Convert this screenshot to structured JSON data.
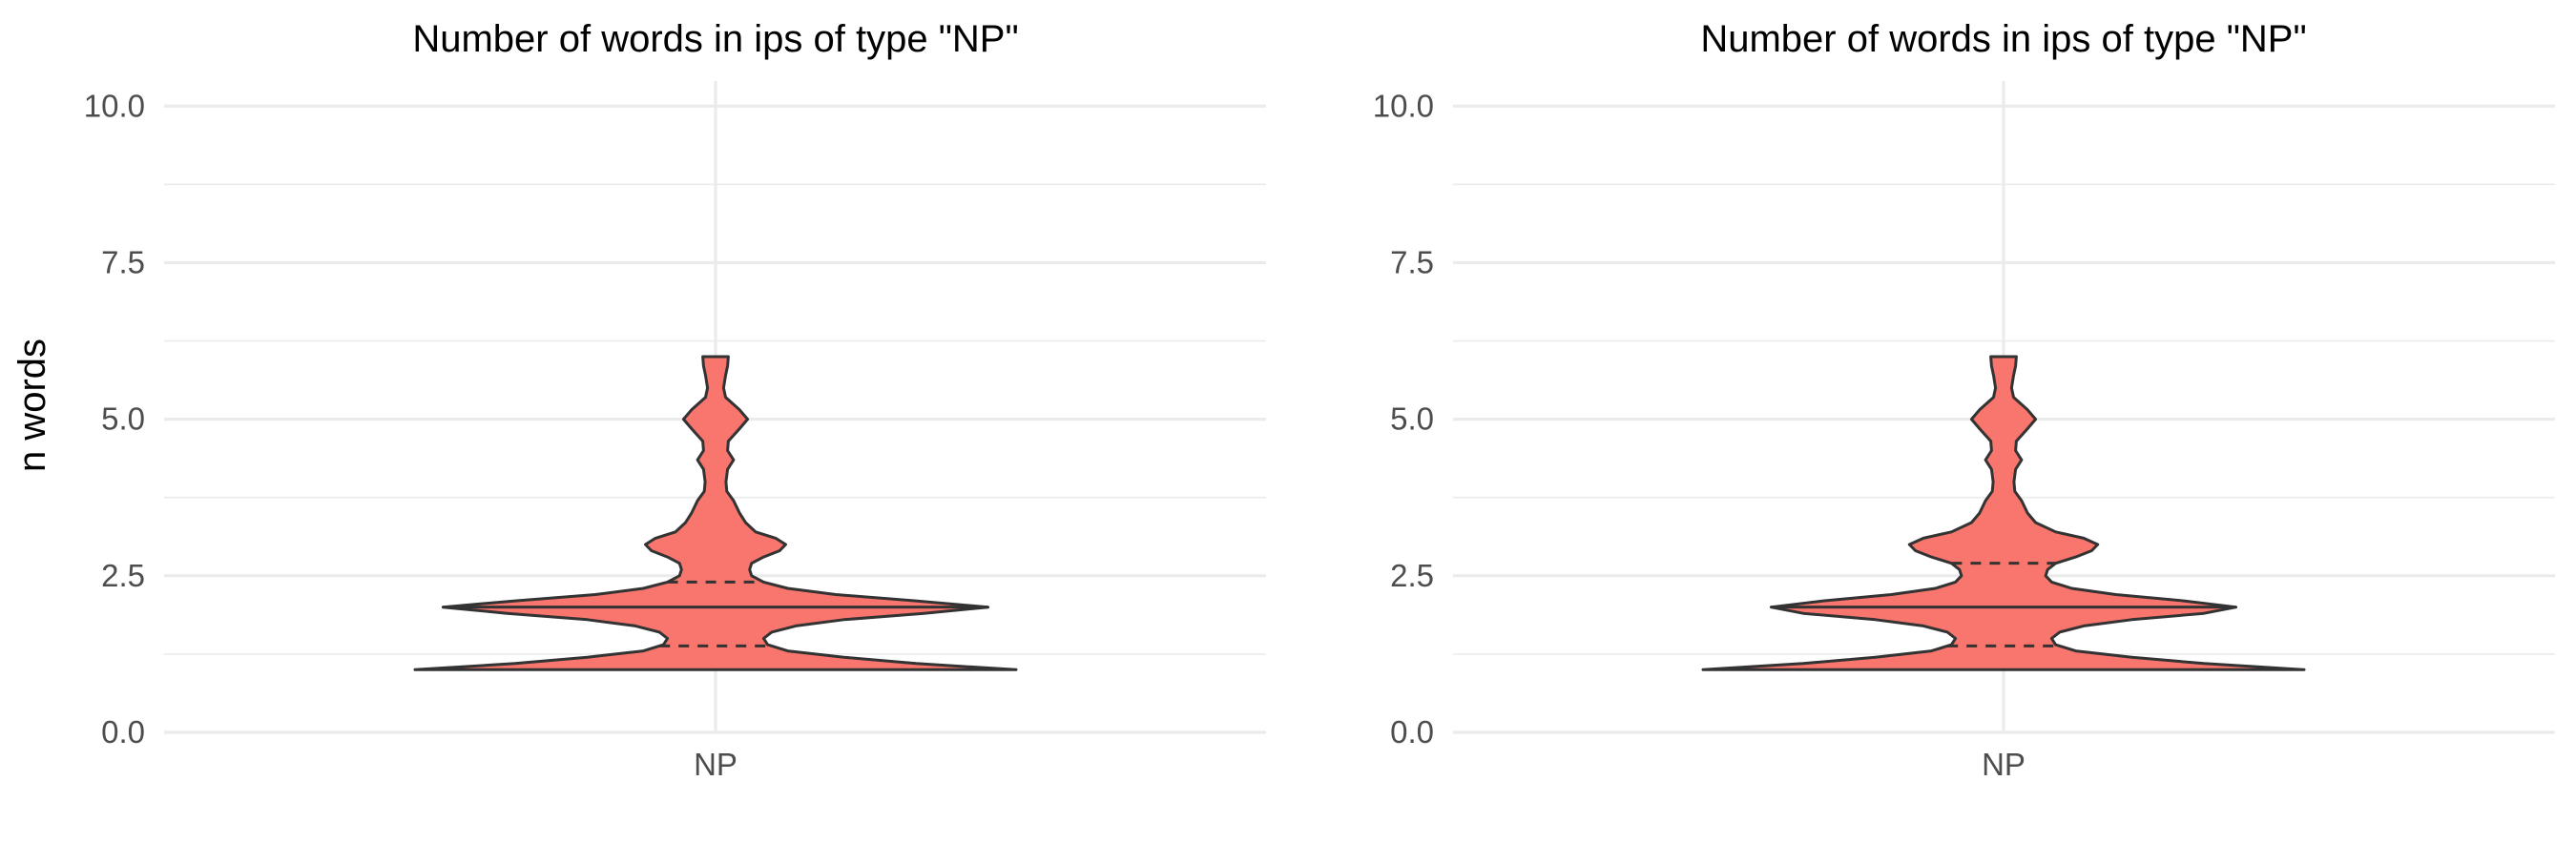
{
  "chart_data": [
    {
      "type": "violin",
      "title": "Number of words in ips of type \"NP\"",
      "xlabel": "",
      "ylabel": "n words",
      "categories": [
        "NP"
      ],
      "ylim": [
        0,
        10.4
      ],
      "y_ticks": [
        0.0,
        2.5,
        5.0,
        7.5,
        10.0
      ],
      "y_tick_labels": [
        "0.0",
        "2.5",
        "5.0",
        "7.5",
        "10.0"
      ],
      "grid": true,
      "fill_color": "#F8766D",
      "outline_color": "#333333",
      "quantiles": {
        "q25": 1.38,
        "median": 2.0,
        "q75": 2.4
      },
      "density": [
        {
          "y": 1.0,
          "w": 0.75
        },
        {
          "y": 1.1,
          "w": 0.5
        },
        {
          "y": 1.2,
          "w": 0.32
        },
        {
          "y": 1.3,
          "w": 0.18
        },
        {
          "y": 1.4,
          "w": 0.13
        },
        {
          "y": 1.5,
          "w": 0.12
        },
        {
          "y": 1.6,
          "w": 0.14
        },
        {
          "y": 1.7,
          "w": 0.2
        },
        {
          "y": 1.8,
          "w": 0.32
        },
        {
          "y": 1.9,
          "w": 0.52
        },
        {
          "y": 2.0,
          "w": 0.68
        },
        {
          "y": 2.1,
          "w": 0.5
        },
        {
          "y": 2.2,
          "w": 0.3
        },
        {
          "y": 2.3,
          "w": 0.18
        },
        {
          "y": 2.4,
          "w": 0.12
        },
        {
          "y": 2.5,
          "w": 0.09
        },
        {
          "y": 2.6,
          "w": 0.085
        },
        {
          "y": 2.7,
          "w": 0.09
        },
        {
          "y": 2.8,
          "w": 0.12
        },
        {
          "y": 2.9,
          "w": 0.16
        },
        {
          "y": 3.0,
          "w": 0.175
        },
        {
          "y": 3.1,
          "w": 0.15
        },
        {
          "y": 3.2,
          "w": 0.1
        },
        {
          "y": 3.35,
          "w": 0.075
        },
        {
          "y": 3.5,
          "w": 0.06
        },
        {
          "y": 3.7,
          "w": 0.045
        },
        {
          "y": 3.85,
          "w": 0.028
        },
        {
          "y": 4.0,
          "w": 0.026
        },
        {
          "y": 4.2,
          "w": 0.03
        },
        {
          "y": 4.35,
          "w": 0.045
        },
        {
          "y": 4.5,
          "w": 0.03
        },
        {
          "y": 4.65,
          "w": 0.032
        },
        {
          "y": 4.85,
          "w": 0.06
        },
        {
          "y": 5.0,
          "w": 0.08
        },
        {
          "y": 5.15,
          "w": 0.06
        },
        {
          "y": 5.35,
          "w": 0.025
        },
        {
          "y": 5.5,
          "w": 0.02
        },
        {
          "y": 5.7,
          "w": 0.025
        },
        {
          "y": 5.85,
          "w": 0.03
        },
        {
          "y": 6.0,
          "w": 0.032
        }
      ]
    },
    {
      "type": "violin",
      "title": "Number of words in ips of type \"NP\"",
      "xlabel": "",
      "ylabel": "",
      "categories": [
        "NP"
      ],
      "ylim": [
        0,
        10.4
      ],
      "y_ticks": [
        0.0,
        2.5,
        5.0,
        7.5,
        10.0
      ],
      "y_tick_labels": [
        "0.0",
        "2.5",
        "5.0",
        "7.5",
        "10.0"
      ],
      "grid": true,
      "fill_color": "#F8766D",
      "outline_color": "#333333",
      "quantiles": {
        "q25": 1.38,
        "median": 2.0,
        "q75": 2.7
      },
      "density": [
        {
          "y": 1.0,
          "w": 0.75
        },
        {
          "y": 1.1,
          "w": 0.5
        },
        {
          "y": 1.2,
          "w": 0.32
        },
        {
          "y": 1.3,
          "w": 0.18
        },
        {
          "y": 1.4,
          "w": 0.13
        },
        {
          "y": 1.5,
          "w": 0.12
        },
        {
          "y": 1.6,
          "w": 0.14
        },
        {
          "y": 1.7,
          "w": 0.2
        },
        {
          "y": 1.8,
          "w": 0.32
        },
        {
          "y": 1.9,
          "w": 0.5
        },
        {
          "y": 2.0,
          "w": 0.58
        },
        {
          "y": 2.1,
          "w": 0.45
        },
        {
          "y": 2.2,
          "w": 0.28
        },
        {
          "y": 2.3,
          "w": 0.17
        },
        {
          "y": 2.4,
          "w": 0.12
        },
        {
          "y": 2.5,
          "w": 0.105
        },
        {
          "y": 2.6,
          "w": 0.11
        },
        {
          "y": 2.7,
          "w": 0.13
        },
        {
          "y": 2.8,
          "w": 0.18
        },
        {
          "y": 2.9,
          "w": 0.22
        },
        {
          "y": 3.0,
          "w": 0.235
        },
        {
          "y": 3.1,
          "w": 0.2
        },
        {
          "y": 3.2,
          "w": 0.13
        },
        {
          "y": 3.35,
          "w": 0.08
        },
        {
          "y": 3.5,
          "w": 0.06
        },
        {
          "y": 3.7,
          "w": 0.045
        },
        {
          "y": 3.85,
          "w": 0.028
        },
        {
          "y": 4.0,
          "w": 0.026
        },
        {
          "y": 4.2,
          "w": 0.03
        },
        {
          "y": 4.35,
          "w": 0.045
        },
        {
          "y": 4.5,
          "w": 0.03
        },
        {
          "y": 4.65,
          "w": 0.032
        },
        {
          "y": 4.85,
          "w": 0.06
        },
        {
          "y": 5.0,
          "w": 0.08
        },
        {
          "y": 5.15,
          "w": 0.06
        },
        {
          "y": 5.35,
          "w": 0.025
        },
        {
          "y": 5.5,
          "w": 0.02
        },
        {
          "y": 5.7,
          "w": 0.025
        },
        {
          "y": 5.85,
          "w": 0.03
        },
        {
          "y": 6.0,
          "w": 0.032
        }
      ]
    }
  ]
}
